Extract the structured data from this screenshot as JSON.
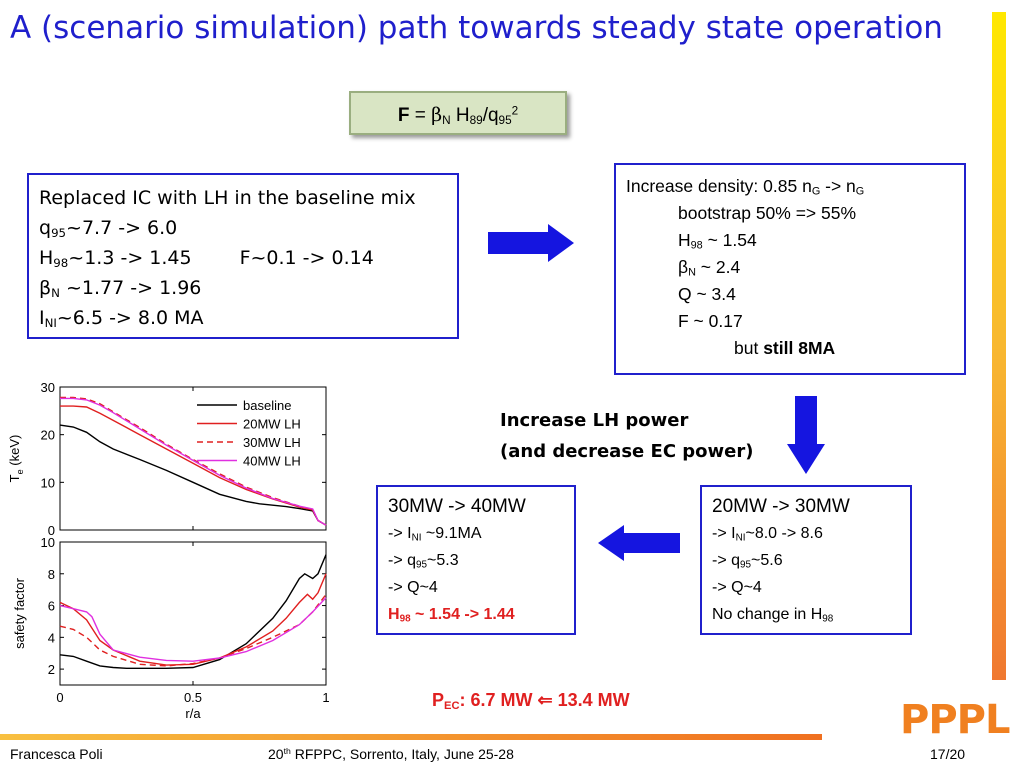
{
  "title": "A (scenario simulation) path towards steady state operation",
  "formula": {
    "F": "F",
    "eq": "=",
    "beta": "β",
    "N": "N",
    "H": "H",
    "H_sub": "89",
    "slash": "/q",
    "q_sub": "95",
    "pow": "2"
  },
  "box_baseline": {
    "line1": "Replaced IC with LH in the baseline mix",
    "q": "q",
    "q_sub": "95",
    "q_val": "~7.7 -> 6.0",
    "H": "H",
    "H_sub": "98",
    "H_val": "~1.3 -> 1.45",
    "F_val": "F~0.1 -> 0.14",
    "beta": "β",
    "beta_sub": "N",
    "beta_val": " ~1.77 -> 1.96",
    "I": "I",
    "I_sub": "NI",
    "I_val": "~6.5 -> 8.0 MA"
  },
  "box_density": {
    "line1_pre": "Increase density: 0.85 n",
    "nG1": "G",
    "arrow": " -> n",
    "nG2": "G",
    "bootstrap": "bootstrap 50% => 55%",
    "H": "H",
    "H_sub": "98",
    "H_val": " ~ 1.54",
    "beta": "β",
    "beta_sub": "N",
    "beta_val": " ~ 2.4",
    "Q": "Q ~ 3.4",
    "F": "F ~ 0.17",
    "but": "but ",
    "still": "still 8MA"
  },
  "lh_power": {
    "line1": "Increase LH power",
    "line2": "(and decrease EC power)"
  },
  "box_30mw": {
    "header": "20MW -> 30MW",
    "I_pre": "-> I",
    "I_sub": "NI",
    "I_val": "~8.0 -> 8.6",
    "q_pre": "-> q",
    "q_sub": "95",
    "q_val": "~5.6",
    "Q": "-> Q~4",
    "H_pre": "No change in H",
    "H_sub": "98"
  },
  "box_40mw": {
    "header": "30MW -> 40MW",
    "I_pre": "-> I",
    "I_sub": "NI",
    "I_val": " ~9.1MA",
    "q_pre": "-> q",
    "q_sub": "95",
    "q_val": "~5.3",
    "Q": "-> Q~4",
    "H": "H",
    "H_sub": "98",
    "H_val": " ~ 1.54 -> 1.44"
  },
  "pec": {
    "P": "P",
    "sub": "EC",
    "text1": ": 6.7 MW ",
    "arrow": "⇐",
    "text2": "  13.4 MW"
  },
  "logo": "PPPL",
  "footer": {
    "author": "Francesca Poli",
    "conf_pre": "20",
    "conf_sup": "th",
    "conf_post": " RFPPC, Sorrento, Italy, June 25-28",
    "page": "17/20"
  },
  "colors": {
    "title": "#1f1fcc",
    "box_border": "#2020cc",
    "arrow": "#1515e0",
    "baseline": "#000000",
    "lh20": "#e02020",
    "lh30": "#e02020",
    "lh40": "#e030e0",
    "pec": "#e02020",
    "logo": "#f08020"
  },
  "chart_data": [
    {
      "type": "line",
      "ylabel": "T",
      "ylabel_sub": "e",
      "ylabel_unit": " (keV)",
      "xlim": [
        0,
        1
      ],
      "ylim": [
        0,
        30
      ],
      "yticks": [
        "0",
        "10",
        "20",
        "30"
      ],
      "legend": "top-right",
      "series": [
        {
          "name": "baseline",
          "style": "solid",
          "color": "#000000",
          "x": [
            0,
            0.05,
            0.1,
            0.15,
            0.2,
            0.3,
            0.4,
            0.5,
            0.6,
            0.7,
            0.75,
            0.8,
            0.85,
            0.9,
            0.95,
            0.97,
            1.0
          ],
          "y": [
            22,
            21.6,
            20.5,
            18.5,
            17,
            14.8,
            12.5,
            10,
            7.5,
            6,
            5.5,
            5.2,
            4.9,
            4.5,
            4,
            2,
            1
          ]
        },
        {
          "name": "20MW LH",
          "style": "solid",
          "color": "#e02020",
          "x": [
            0,
            0.05,
            0.1,
            0.15,
            0.2,
            0.3,
            0.4,
            0.5,
            0.6,
            0.7,
            0.8,
            0.9,
            0.95,
            0.97,
            1.0
          ],
          "y": [
            26,
            26,
            25.8,
            24.5,
            23,
            20,
            17,
            14,
            11,
            8.5,
            6.5,
            4.8,
            4.2,
            2,
            1
          ]
        },
        {
          "name": "30MW LH",
          "style": "dashed",
          "color": "#e02020",
          "x": [
            0,
            0.05,
            0.1,
            0.15,
            0.2,
            0.3,
            0.4,
            0.5,
            0.6,
            0.7,
            0.8,
            0.9,
            0.95,
            0.97,
            1.0
          ],
          "y": [
            27.8,
            27.8,
            27.5,
            26.5,
            24.8,
            21.5,
            18,
            14.8,
            11.8,
            9,
            6.8,
            5,
            4.3,
            2,
            1
          ]
        },
        {
          "name": "40MW LH",
          "style": "solid",
          "color": "#e030e0",
          "x": [
            0,
            0.05,
            0.1,
            0.15,
            0.2,
            0.3,
            0.4,
            0.5,
            0.6,
            0.7,
            0.8,
            0.9,
            0.95,
            0.97,
            1.0
          ],
          "y": [
            27.6,
            27.6,
            27.3,
            26.2,
            24.6,
            21.2,
            17.8,
            14.6,
            11.5,
            8.8,
            6.6,
            5,
            4.4,
            2,
            1
          ]
        }
      ]
    },
    {
      "type": "line",
      "ylabel": "safety factor",
      "xlabel": "r/a",
      "xlim": [
        0,
        1
      ],
      "ylim": [
        1,
        10
      ],
      "yticks": [
        "2",
        "4",
        "6",
        "8",
        "10"
      ],
      "xticks": [
        "0",
        "0.5",
        "1"
      ],
      "series": [
        {
          "name": "baseline",
          "style": "solid",
          "color": "#000000",
          "x": [
            0,
            0.05,
            0.1,
            0.15,
            0.2,
            0.25,
            0.3,
            0.4,
            0.5,
            0.6,
            0.7,
            0.8,
            0.85,
            0.9,
            0.92,
            0.95,
            0.97,
            1.0
          ],
          "y": [
            2.9,
            2.8,
            2.5,
            2.2,
            2.1,
            2.05,
            2.05,
            2.05,
            2.1,
            2.6,
            3.6,
            5.2,
            6.3,
            7.7,
            8,
            7.7,
            8,
            9.2
          ]
        },
        {
          "name": "20MW LH",
          "style": "solid",
          "color": "#e02020",
          "x": [
            0,
            0.05,
            0.1,
            0.15,
            0.2,
            0.3,
            0.4,
            0.5,
            0.6,
            0.7,
            0.8,
            0.85,
            0.9,
            0.93,
            0.95,
            0.97,
            1.0
          ],
          "y": [
            6.2,
            5.8,
            5.1,
            3.8,
            3.2,
            2.5,
            2.25,
            2.3,
            2.7,
            3.4,
            4.4,
            5.2,
            6.2,
            6.7,
            6.4,
            6.8,
            8
          ]
        },
        {
          "name": "30MW LH",
          "style": "dashed",
          "color": "#e02020",
          "x": [
            0,
            0.05,
            0.1,
            0.15,
            0.2,
            0.3,
            0.4,
            0.5,
            0.6,
            0.7,
            0.8,
            0.9,
            0.95,
            1.0
          ],
          "y": [
            4.7,
            4.5,
            4.0,
            3.2,
            2.8,
            2.3,
            2.2,
            2.35,
            2.7,
            3.3,
            4,
            4.8,
            5.6,
            6.7
          ]
        },
        {
          "name": "40MW LH",
          "style": "solid",
          "color": "#e030e0",
          "x": [
            0,
            0.05,
            0.1,
            0.12,
            0.15,
            0.2,
            0.3,
            0.4,
            0.5,
            0.6,
            0.7,
            0.8,
            0.9,
            0.95,
            1.0
          ],
          "y": [
            6,
            5.8,
            5.6,
            5.3,
            4.2,
            3.2,
            2.75,
            2.55,
            2.5,
            2.7,
            3.1,
            3.8,
            4.8,
            5.6,
            6.5
          ]
        }
      ]
    }
  ]
}
